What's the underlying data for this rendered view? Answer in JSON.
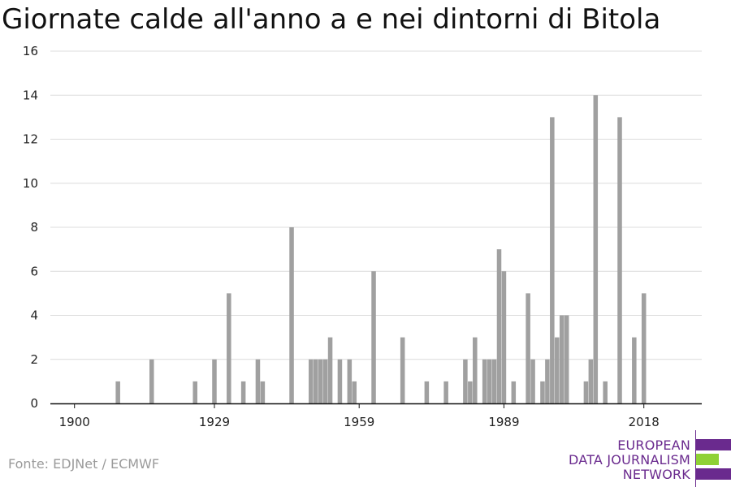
{
  "chart_data": {
    "type": "bar",
    "title": "Giornate calde all'anno a e nei dintorni di Bitola",
    "xlabel": "",
    "ylabel": "",
    "xlim": [
      1895,
      2030
    ],
    "ylim": [
      0,
      16
    ],
    "x_ticks": [
      1900,
      1929,
      1959,
      1989,
      2018
    ],
    "y_ticks": [
      0,
      2,
      4,
      6,
      8,
      10,
      12,
      14,
      16
    ],
    "grid": true,
    "bar_color": "#a0a0a0",
    "x": [
      1909,
      1916,
      1925,
      1929,
      1932,
      1935,
      1938,
      1939,
      1945,
      1949,
      1950,
      1951,
      1952,
      1953,
      1955,
      1957,
      1958,
      1962,
      1968,
      1973,
      1977,
      1981,
      1982,
      1983,
      1985,
      1986,
      1987,
      1988,
      1989,
      1991,
      1994,
      1995,
      1997,
      1998,
      1999,
      2000,
      2001,
      2002,
      2006,
      2007,
      2008,
      2010,
      2013,
      2016,
      2018
    ],
    "values": [
      1,
      2,
      1,
      2,
      5,
      1,
      2,
      1,
      8,
      2,
      2,
      2,
      2,
      3,
      2,
      2,
      1,
      6,
      3,
      1,
      1,
      2,
      1,
      3,
      2,
      2,
      2,
      7,
      6,
      1,
      5,
      2,
      1,
      2,
      13,
      3,
      4,
      4,
      1,
      2,
      14,
      1,
      13,
      3,
      5
    ]
  },
  "source": "Fonte: EDJNet / ECMWF",
  "logo": {
    "line1": "EUROPEAN",
    "line2": "DATA JOURNALISM",
    "line3": "NETWORK",
    "purple": "#6a2a8e",
    "green": "#8fd136"
  }
}
